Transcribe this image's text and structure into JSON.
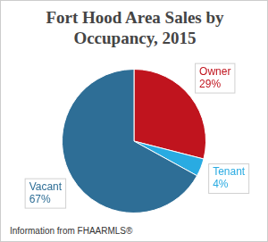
{
  "chart_data": {
    "type": "pie",
    "title": "Fort Hood Area Sales by Occupancy, 2015",
    "categories": [
      "Owner",
      "Tenant",
      "Vacant"
    ],
    "values": [
      29,
      4,
      67
    ],
    "value_labels": [
      "29%",
      "4%",
      "67%"
    ],
    "colors": [
      "#c0141e",
      "#29abe2",
      "#2e6e96"
    ],
    "data_labels": true,
    "annotations": [
      "Information from FHAARMLS®"
    ]
  }
}
